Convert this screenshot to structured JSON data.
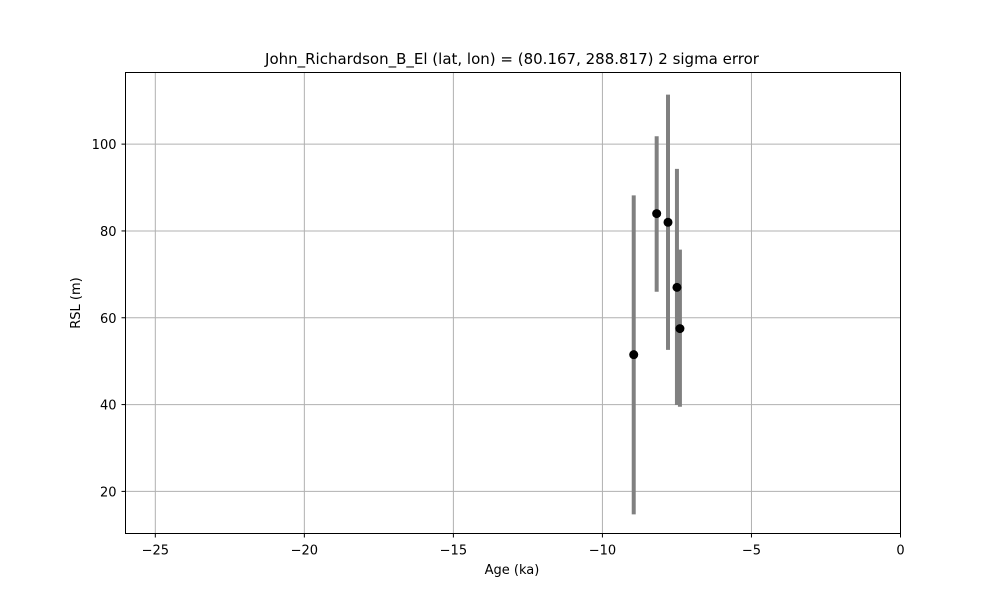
{
  "chart_data": {
    "type": "scatter",
    "title": "John_Richardson_B_El (lat, lon) = (80.167, 288.817)  2 sigma error",
    "xlabel": "Age (ka)",
    "ylabel": "RSL (m)",
    "xlim": [
      -26,
      0
    ],
    "ylim": [
      10.3,
      116.5
    ],
    "xticks": [
      -25,
      -20,
      -15,
      -10,
      -5,
      0
    ],
    "xtick_labels": [
      "−25",
      "−20",
      "−15",
      "−10",
      "−5",
      "0"
    ],
    "yticks": [
      20,
      40,
      60,
      80,
      100
    ],
    "ytick_labels": [
      "20",
      "40",
      "60",
      "80",
      "100"
    ],
    "grid": true,
    "errorbar_color": "#808080",
    "marker_color": "#000000",
    "points": [
      {
        "x": -8.95,
        "y": 51.5,
        "ylow": 14.7,
        "yhigh": 88.2
      },
      {
        "x": -8.18,
        "y": 84.0,
        "ylow": 66.0,
        "yhigh": 101.8
      },
      {
        "x": -7.8,
        "y": 82.0,
        "ylow": 52.6,
        "yhigh": 111.4
      },
      {
        "x": -7.5,
        "y": 67.0,
        "ylow": 39.9,
        "yhigh": 94.3
      },
      {
        "x": -7.4,
        "y": 57.5,
        "ylow": 39.5,
        "yhigh": 75.7
      }
    ]
  }
}
